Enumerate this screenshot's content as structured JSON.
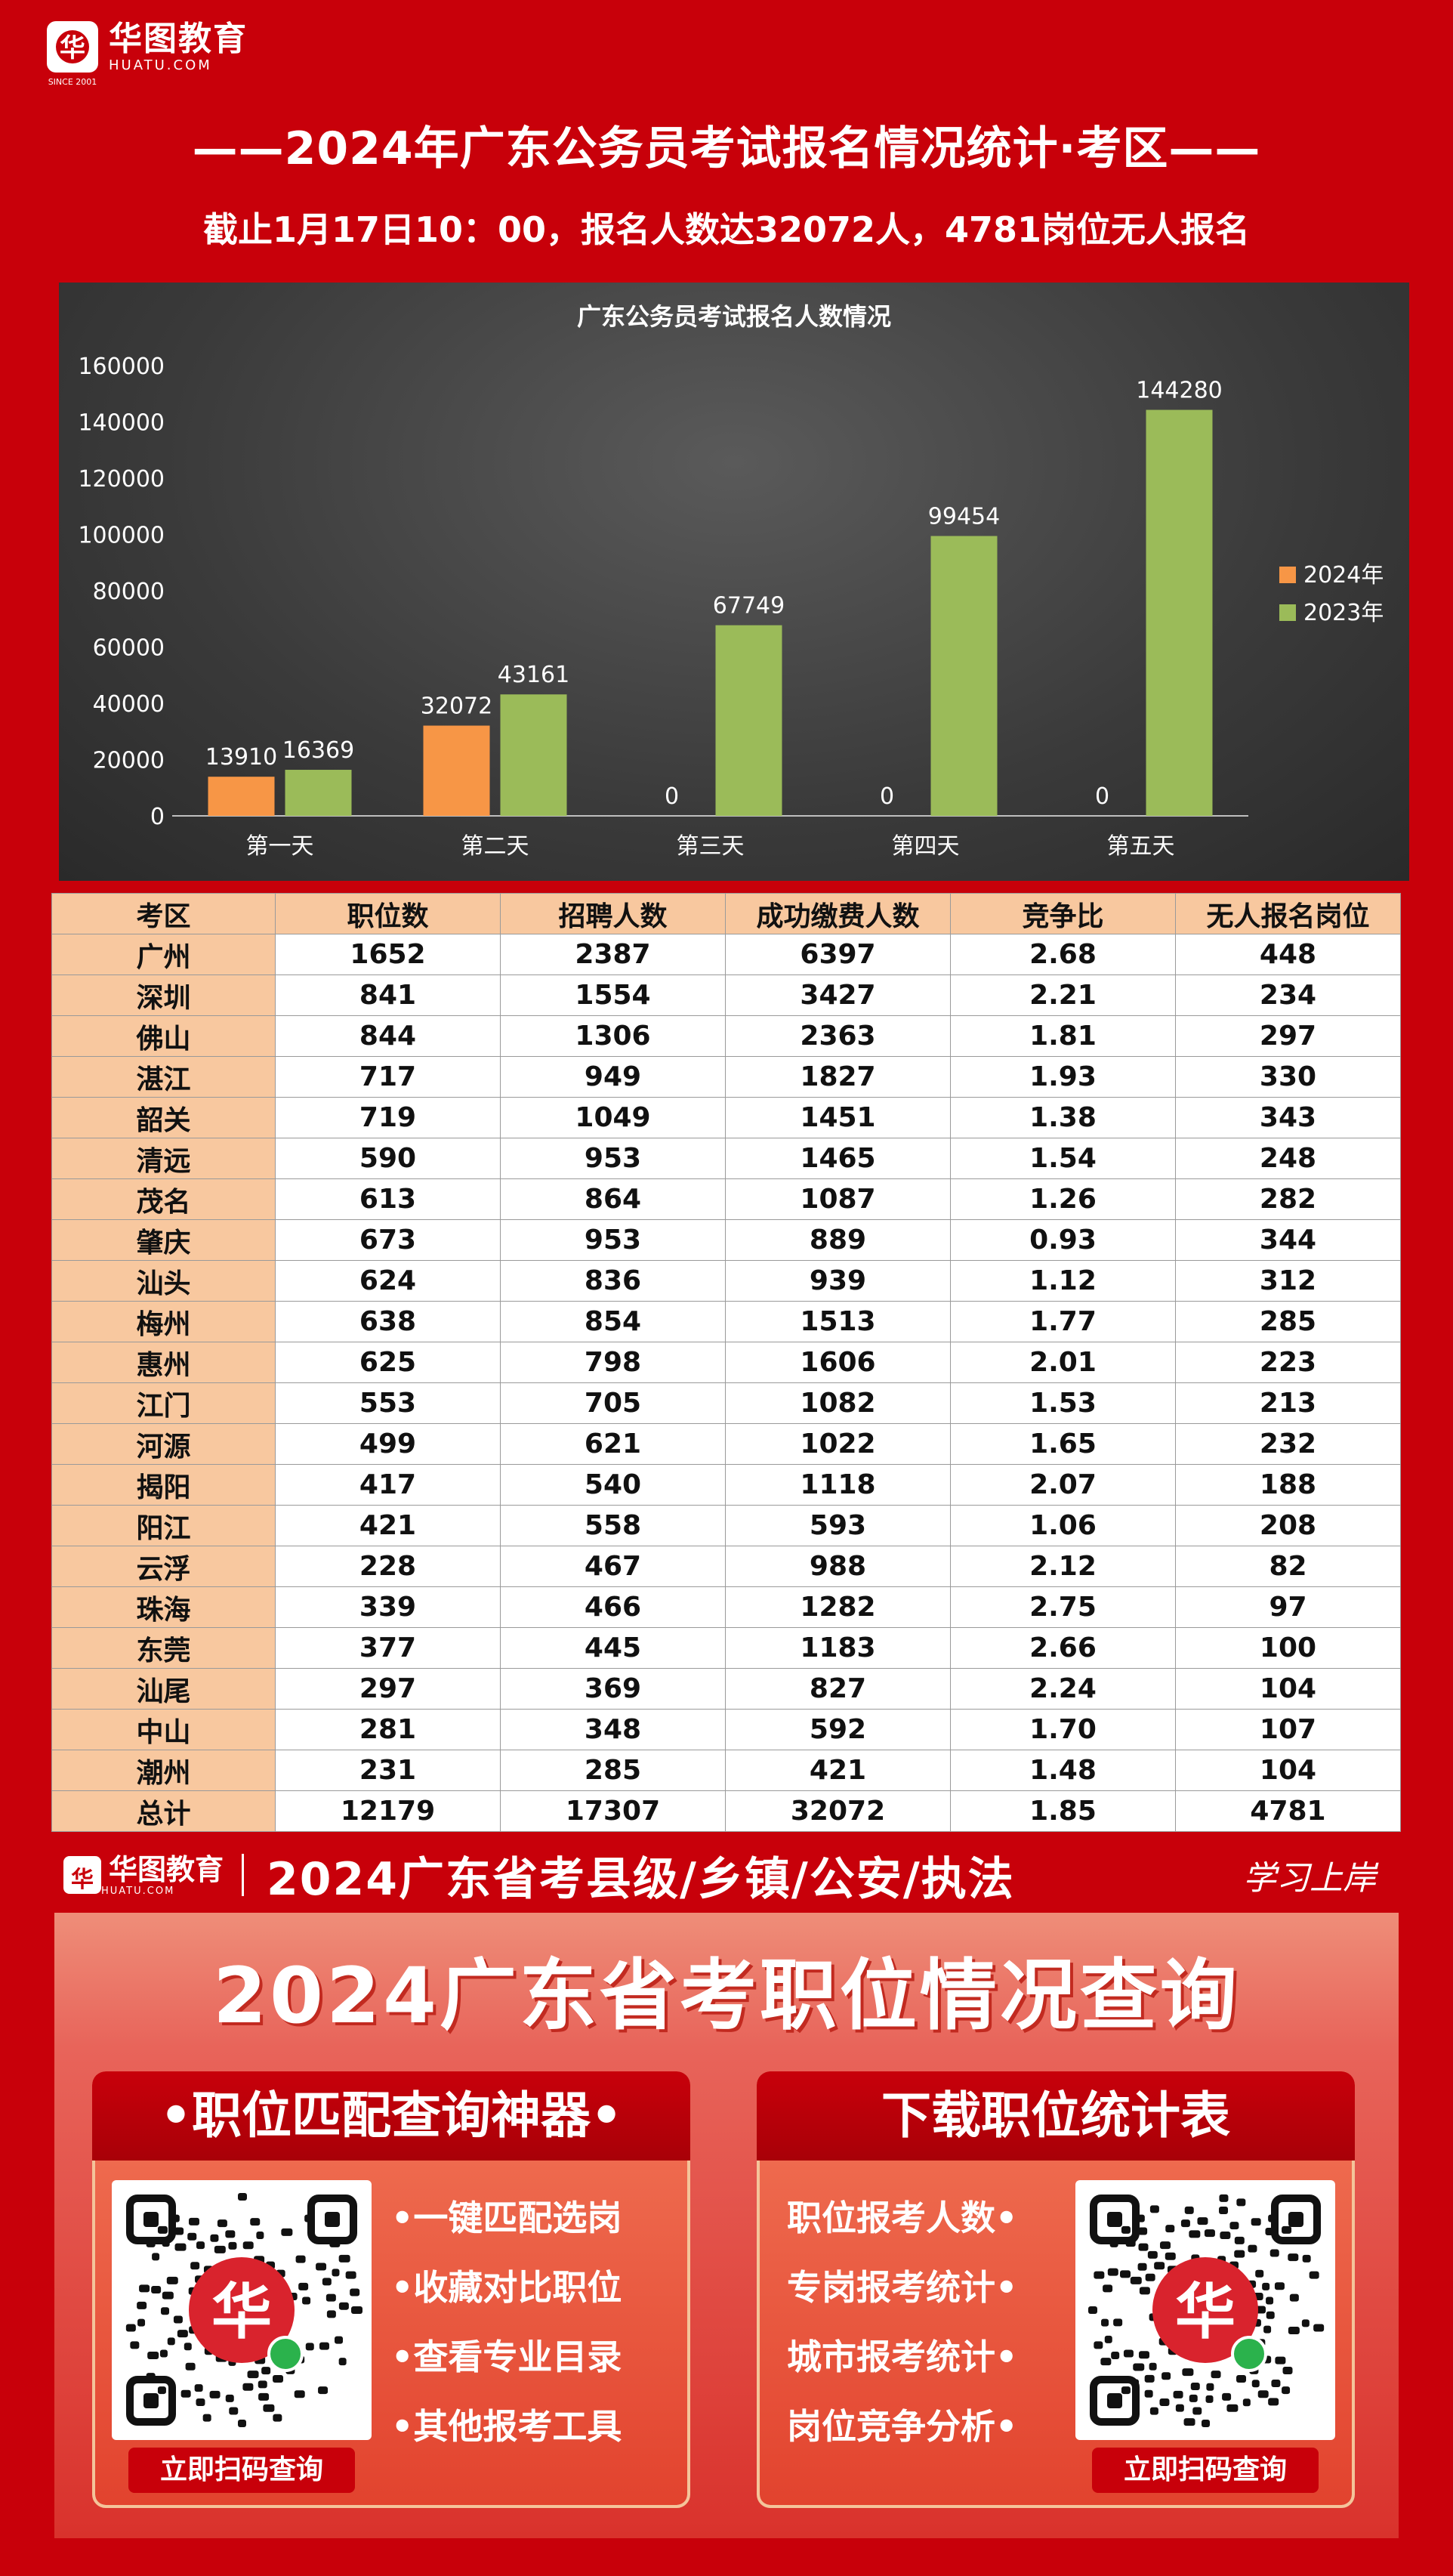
{
  "header": {
    "logo_cn": "华图教育",
    "logo_en": "HUATU.COM",
    "logo_since": "SINCE 2001",
    "title": "——2024年广东公务员考试报名情况统计·考区——",
    "subtitle": "截止1月17日10：00，报名人数达32072人，4781岗位无人报名"
  },
  "chart_data": {
    "type": "bar",
    "title": "广东公务员考试报名人数情况",
    "categories": [
      "第一天",
      "第二天",
      "第三天",
      "第四天",
      "第五天"
    ],
    "series": [
      {
        "name": "2024年",
        "values": [
          13910,
          32072,
          0,
          0,
          0
        ],
        "color": "#f79646"
      },
      {
        "name": "2023年",
        "values": [
          16369,
          43161,
          67749,
          99454,
          144280
        ],
        "color": "#9bbb59"
      }
    ],
    "ylim": [
      0,
      160000
    ],
    "yticks": [
      0,
      20000,
      40000,
      60000,
      80000,
      100000,
      120000,
      140000,
      160000
    ],
    "legend": "right",
    "grid": false
  },
  "table": {
    "headers": [
      "考区",
      "职位数",
      "招聘人数",
      "成功缴费人数",
      "竞争比",
      "无人报名岗位"
    ],
    "rows": [
      [
        "广州",
        "1652",
        "2387",
        "6397",
        "2.68",
        "448"
      ],
      [
        "深圳",
        "841",
        "1554",
        "3427",
        "2.21",
        "234"
      ],
      [
        "佛山",
        "844",
        "1306",
        "2363",
        "1.81",
        "297"
      ],
      [
        "湛江",
        "717",
        "949",
        "1827",
        "1.93",
        "330"
      ],
      [
        "韶关",
        "719",
        "1049",
        "1451",
        "1.38",
        "343"
      ],
      [
        "清远",
        "590",
        "953",
        "1465",
        "1.54",
        "248"
      ],
      [
        "茂名",
        "613",
        "864",
        "1087",
        "1.26",
        "282"
      ],
      [
        "肇庆",
        "673",
        "953",
        "889",
        "0.93",
        "344"
      ],
      [
        "汕头",
        "624",
        "836",
        "939",
        "1.12",
        "312"
      ],
      [
        "梅州",
        "638",
        "854",
        "1513",
        "1.77",
        "285"
      ],
      [
        "惠州",
        "625",
        "798",
        "1606",
        "2.01",
        "223"
      ],
      [
        "江门",
        "553",
        "705",
        "1082",
        "1.53",
        "213"
      ],
      [
        "河源",
        "499",
        "621",
        "1022",
        "1.65",
        "232"
      ],
      [
        "揭阳",
        "417",
        "540",
        "1118",
        "2.07",
        "188"
      ],
      [
        "阳江",
        "421",
        "558",
        "593",
        "1.06",
        "208"
      ],
      [
        "云浮",
        "228",
        "467",
        "988",
        "2.12",
        "82"
      ],
      [
        "珠海",
        "339",
        "466",
        "1282",
        "2.75",
        "97"
      ],
      [
        "东莞",
        "377",
        "445",
        "1183",
        "2.66",
        "100"
      ],
      [
        "汕尾",
        "297",
        "369",
        "827",
        "2.24",
        "104"
      ],
      [
        "中山",
        "281",
        "348",
        "592",
        "1.70",
        "107"
      ],
      [
        "潮州",
        "231",
        "285",
        "421",
        "1.48",
        "104"
      ],
      [
        "总计",
        "12179",
        "17307",
        "32072",
        "1.85",
        "4781"
      ]
    ]
  },
  "promo": {
    "logo_cn": "华图教育",
    "logo_en": "HUATU.COM",
    "line1": "2024广东省考县级/乡镇/公安/执法",
    "slogan": "学习上岸",
    "big_title": "2024广东省考职位情况查询",
    "left_card": {
      "title": "•职位匹配查询神器•",
      "features": [
        "•一键匹配选岗",
        "•收藏对比职位",
        "•查看专业目录",
        "•其他报考工具"
      ],
      "button": "立即扫码查询"
    },
    "right_card": {
      "title": "下载职位统计表",
      "features": [
        "职位报考人数•",
        "专岗报考统计•",
        "城市报考统计•",
        "岗位竞争分析•"
      ],
      "button": "立即扫码查询"
    }
  }
}
